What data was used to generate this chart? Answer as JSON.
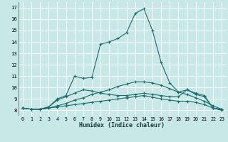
{
  "xlabel": "Humidex (Indice chaleur)",
  "xlim": [
    -0.5,
    23.5
  ],
  "ylim": [
    7.5,
    17.5
  ],
  "yticks": [
    8,
    9,
    10,
    11,
    12,
    13,
    14,
    15,
    16,
    17
  ],
  "xticks": [
    0,
    1,
    2,
    3,
    4,
    5,
    6,
    7,
    8,
    9,
    10,
    11,
    12,
    13,
    14,
    15,
    16,
    17,
    18,
    19,
    20,
    21,
    22,
    23
  ],
  "background_color": "#c8e8e8",
  "grid_color": "#ffffff",
  "line_color": "#1a6b6b",
  "series": [
    [
      8.2,
      8.1,
      8.1,
      8.2,
      8.3,
      8.4,
      8.5,
      8.6,
      8.7,
      8.8,
      8.9,
      9.0,
      9.1,
      9.2,
      9.3,
      9.15,
      9.0,
      8.9,
      8.8,
      8.8,
      8.7,
      8.5,
      8.2,
      8.1
    ],
    [
      8.2,
      8.1,
      8.1,
      8.2,
      8.4,
      8.6,
      8.9,
      9.1,
      9.4,
      9.6,
      9.8,
      10.1,
      10.3,
      10.5,
      10.5,
      10.4,
      10.2,
      9.9,
      9.6,
      9.4,
      9.1,
      8.8,
      8.4,
      8.1
    ],
    [
      8.2,
      8.1,
      8.1,
      8.3,
      8.9,
      9.2,
      9.5,
      9.8,
      9.7,
      9.5,
      9.4,
      9.3,
      9.3,
      9.4,
      9.5,
      9.4,
      9.3,
      9.2,
      9.2,
      9.8,
      9.4,
      9.2,
      8.2,
      8.1
    ],
    [
      8.2,
      8.1,
      8.1,
      8.3,
      9.0,
      9.3,
      11.0,
      10.8,
      10.9,
      13.8,
      14.0,
      14.3,
      14.8,
      16.5,
      16.9,
      15.0,
      12.2,
      10.4,
      9.6,
      9.8,
      9.5,
      9.3,
      8.2,
      8.0
    ]
  ]
}
